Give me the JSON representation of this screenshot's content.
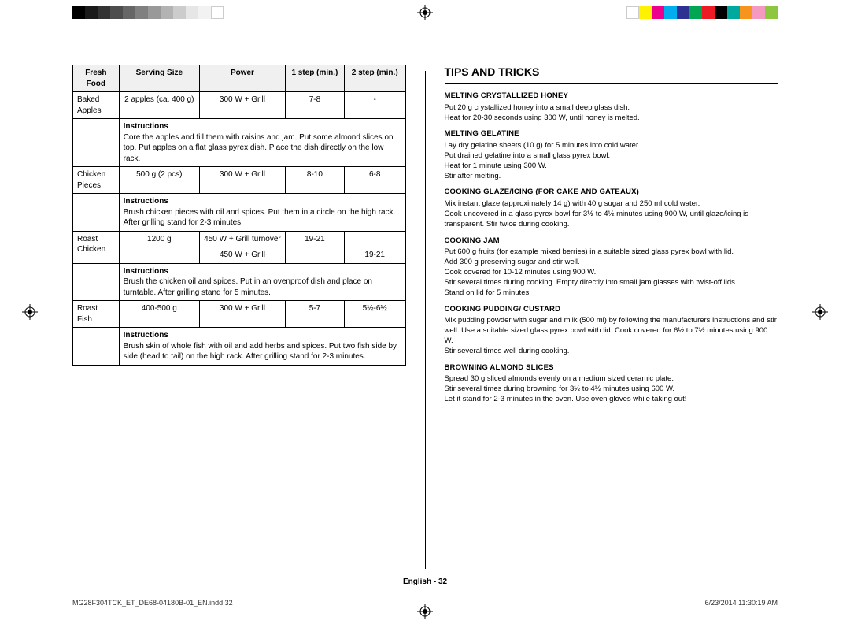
{
  "colorbars": {
    "left": [
      "#000000",
      "#1a1a1a",
      "#333333",
      "#4d4d4d",
      "#666666",
      "#808080",
      "#999999",
      "#b3b3b3",
      "#cccccc",
      "#e6e6e6",
      "#f2f2f2",
      "#ffffff"
    ],
    "right": [
      "#ffffff",
      "#fff200",
      "#ec008c",
      "#00aeef",
      "#2e3192",
      "#00a651",
      "#ed1c24",
      "#000000",
      "#00a99d",
      "#f7941d",
      "#f49ac1",
      "#8dc63f"
    ]
  },
  "table": {
    "headers": [
      "Fresh Food",
      "Serving Size",
      "Power",
      "1 step (min.)",
      "2 step (min.)"
    ],
    "rows": [
      {
        "food": "Baked Apples",
        "size": "2 apples (ca. 400 g)",
        "power": "300 W + Grill",
        "s1": "7-8",
        "s2": "-",
        "instr": "Core the apples and fill them with raisins and jam. Put some almond slices on top. Put apples on a flat glass pyrex dish. Place the dish directly on the low rack."
      },
      {
        "food": "Chicken Pieces",
        "size": "500 g (2 pcs)",
        "power": "300 W + Grill",
        "s1": "8-10",
        "s2": "6-8",
        "instr": "Brush chicken pieces with oil and spices. Put them in a circle on the high rack. After grilling stand for 2-3 minutes."
      },
      {
        "food": "Roast Chicken",
        "size": "1200 g",
        "power": "450 W + Grill turnover",
        "s1": "19-21",
        "s2": "",
        "power2": "450 W + Grill",
        "s1b": "",
        "s2b": "19-21",
        "instr": "Brush the chicken oil and spices. Put in an ovenproof dish and place on turntable. After grilling stand for 5 minutes."
      },
      {
        "food": "Roast Fish",
        "size": "400-500 g",
        "power": "300 W + Grill",
        "s1": "5-7",
        "s2": "5½-6½",
        "instr": "Brush skin of whole fish with oil and add herbs and spices. Put two fish side by side (head to tail) on the high rack. After grilling stand for 2-3 minutes."
      }
    ],
    "instr_label": "Instructions"
  },
  "tips": {
    "heading": "TIPS AND TRICKS",
    "items": [
      {
        "title": "MELTING CRYSTALLIZED HONEY",
        "body": "Put 20 g crystallized honey into a small deep glass dish.\nHeat for 20-30 seconds using 300 W, until honey is melted."
      },
      {
        "title": "MELTING GELATINE",
        "body": "Lay dry gelatine sheets (10 g) for 5 minutes into cold water.\nPut drained gelatine into a small glass pyrex bowl.\nHeat for 1 minute using 300 W.\nStir after melting."
      },
      {
        "title": "COOKING GLAZE/ICING (FOR CAKE AND GATEAUX)",
        "body": "Mix instant glaze (approximately 14 g) with 40 g sugar and 250 ml cold water.\nCook uncovered in a glass pyrex bowl for 3½ to 4½ minutes using 900 W, until glaze/icing is transparent. Stir twice during cooking."
      },
      {
        "title": "COOKING JAM",
        "body": "Put 600 g fruits (for example mixed berries) in a suitable sized glass pyrex bowl with lid.\nAdd 300 g preserving sugar and stir well.\nCook covered for 10-12 minutes using 900 W.\nStir several times during cooking. Empty directly into small jam glasses with twist-off lids.\nStand on lid for 5 minutes."
      },
      {
        "title": "COOKING PUDDING/ CUSTARD",
        "body": "Mix pudding powder with sugar and milk (500 ml) by following the manufacturers instructions and stir well. Use a suitable sized glass pyrex bowl with lid. Cook covered for 6½ to 7½ minutes using 900 W.\nStir several times well during cooking."
      },
      {
        "title": "BROWNING ALMOND SLICES",
        "body": "Spread 30 g sliced almonds evenly on a medium sized ceramic plate.\nStir several times during browning for 3½ to 4½ minutes using 600 W.\nLet it stand for 2-3 minutes in the oven. Use oven gloves while taking out!"
      }
    ]
  },
  "footer": "English - 32",
  "meta": {
    "file": "MG28F304TCK_ET_DE68-04180B-01_EN.indd   32",
    "date": "6/23/2014   11:30:19 AM"
  }
}
